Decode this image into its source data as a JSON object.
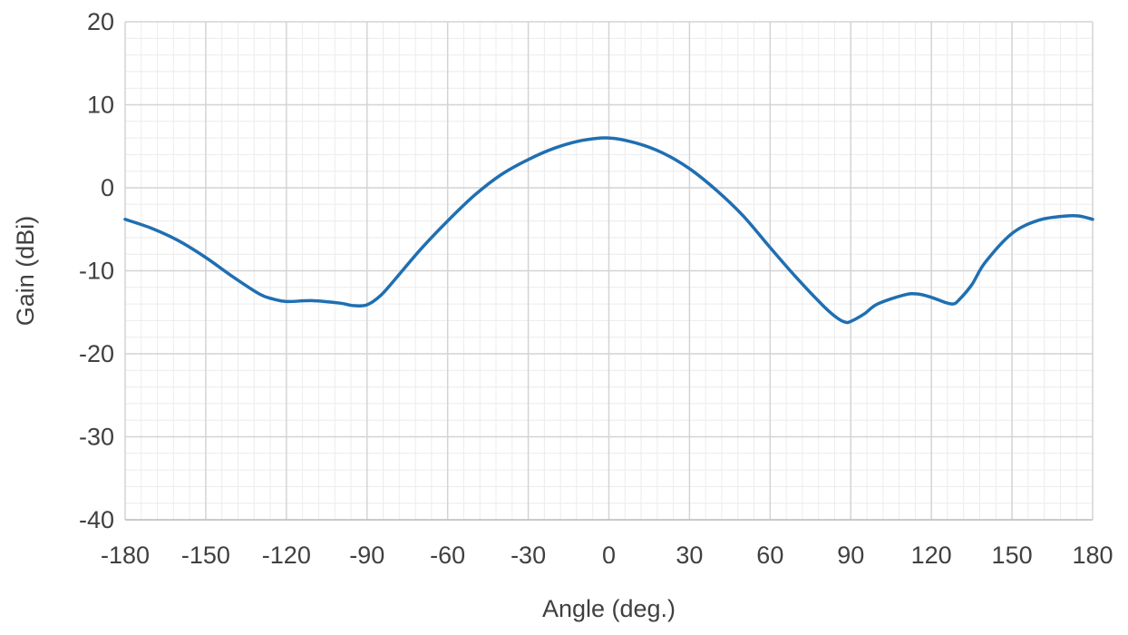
{
  "chart_data": {
    "type": "line",
    "title": "",
    "xlabel": "Angle (deg.)",
    "ylabel": "Gain (dBi)",
    "xlim": [
      -180,
      180
    ],
    "ylim": [
      -40,
      20
    ],
    "x_ticks": [
      -180,
      -150,
      -120,
      -90,
      -60,
      -30,
      0,
      30,
      60,
      90,
      120,
      150,
      180
    ],
    "y_ticks": [
      -40,
      -30,
      -20,
      -10,
      0,
      10,
      20
    ],
    "x_minor_step": 6,
    "y_minor_step": 2,
    "grid": true,
    "legend": "none",
    "colors": {
      "line": "#1f6fb2",
      "major_grid": "#d4d4d4",
      "minor_grid": "#ececec",
      "text": "#404040"
    },
    "series": [
      {
        "x": [
          -180,
          -170,
          -160,
          -150,
          -140,
          -130,
          -125,
          -120,
          -110,
          -100,
          -95,
          -90,
          -85,
          -80,
          -70,
          -60,
          -50,
          -40,
          -30,
          -20,
          -10,
          0,
          10,
          20,
          30,
          40,
          50,
          60,
          70,
          80,
          85,
          88,
          90,
          95,
          100,
          110,
          115,
          120,
          125,
          128,
          130,
          135,
          140,
          150,
          160,
          170,
          175,
          180
        ],
        "y": [
          -3.8,
          -4.9,
          -6.4,
          -8.4,
          -10.7,
          -12.8,
          -13.4,
          -13.7,
          -13.6,
          -13.9,
          -14.2,
          -14.1,
          -13.0,
          -11.2,
          -7.4,
          -4.0,
          -0.9,
          1.6,
          3.4,
          4.8,
          5.7,
          6.0,
          5.4,
          4.2,
          2.3,
          -0.3,
          -3.4,
          -7.2,
          -10.9,
          -14.3,
          -15.7,
          -16.2,
          -16.1,
          -15.2,
          -14.0,
          -12.9,
          -12.8,
          -13.2,
          -13.8,
          -14.0,
          -13.6,
          -11.7,
          -9.0,
          -5.5,
          -3.9,
          -3.4,
          -3.4,
          -3.8
        ]
      }
    ]
  }
}
